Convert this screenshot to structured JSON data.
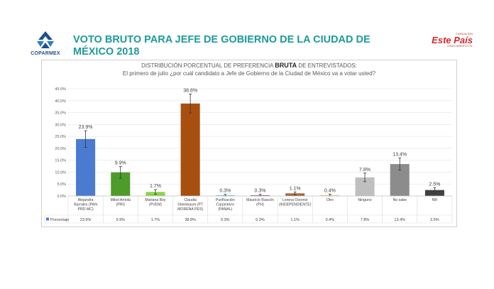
{
  "header": {
    "logo_left_text": "COPARMEX",
    "title": "VOTO BRUTO PARA JEFE DE GOBIERNO DE LA CIUDAD DE MÉXICO 2018",
    "logo_right_tag": "FUNDACIÓN",
    "logo_right_main": "Este País",
    "logo_right_sub": "CONOCIMIENTO ÚTIL"
  },
  "chart_data": {
    "type": "bar",
    "title_pre": "DISTRIBUCIÓN PORCENTUAL DE PREFERENCIA ",
    "title_bold": "BRUTA",
    "title_post": " DE ENTREVISTADOS:",
    "subtitle": "El primero de julio ¿por cuál candidato a Jefe de Gobierno de la Ciudad de México va a votar usted?",
    "yticks": [
      "0.0%",
      "5.0%",
      "10.0%",
      "15.0%",
      "20.0%",
      "25.0%",
      "30.0%",
      "35.0%",
      "40.0%",
      "45.0%"
    ],
    "ylim": [
      0,
      45
    ],
    "categories": [
      [
        "Alejandra",
        "Barrales (PAN",
        "PRD MC)"
      ],
      [
        "Mikel Arriola",
        "(PRI)"
      ],
      [
        "Mariana Boy",
        "(PVEM)"
      ],
      [
        "Claudia",
        "Sheinbaum (PT",
        "MORENA PES)"
      ],
      [
        "Purificación",
        "Carpinteiro",
        "(PANAL)"
      ],
      [
        "Mauricio Rascón",
        "(PH)"
      ],
      [
        "Lorena Osornio",
        "(INDEPENDIENTE)"
      ],
      [
        "Otro"
      ],
      [
        "Ninguno"
      ],
      [
        "No sabe"
      ],
      [
        "NR"
      ]
    ],
    "values": [
      23.9,
      9.9,
      1.7,
      38.8,
      0.3,
      0.3,
      1.1,
      0.4,
      7.8,
      13.4,
      2.5
    ],
    "labels": [
      "23.9%",
      "9.9%",
      "1.7%",
      "38.8%",
      "0.3%",
      "0.3%",
      "1.1%",
      "0.4%",
      "7.8%",
      "13.4%",
      "2.5%"
    ],
    "error": [
      3.5,
      2.5,
      1.0,
      4.0,
      0.4,
      0.4,
      0.6,
      0.4,
      1.8,
      2.6,
      1.0
    ],
    "colors": [
      "#4a7bd0",
      "#4e9a2a",
      "#8dd44a",
      "#a84f10",
      "#5ac2e8",
      "#8a3a86",
      "#a8683a",
      "#f2c896",
      "#bfbfbf",
      "#8c8c8c",
      "#404040"
    ],
    "series_name": "Porcentaje",
    "grid": true
  }
}
